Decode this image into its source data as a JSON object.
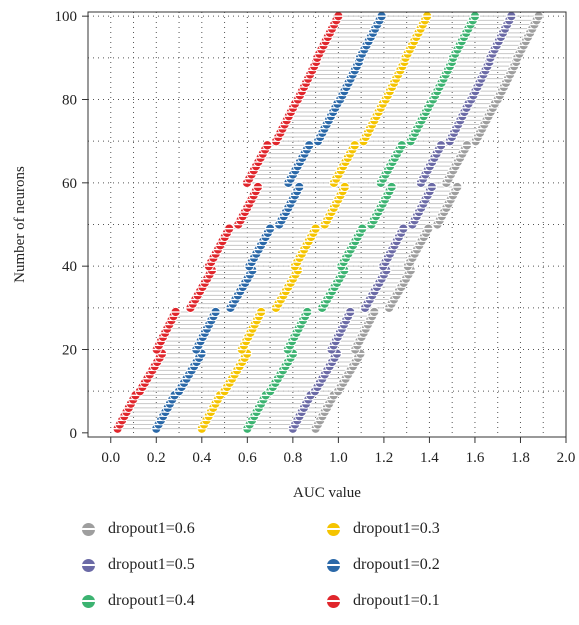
{
  "chart_data": {
    "type": "scatter",
    "title": "",
    "xlabel": "AUC value",
    "ylabel": "Number of neurons",
    "xlim": [
      -0.1,
      2.0
    ],
    "ylim": [
      -1,
      101
    ],
    "xticks": [
      "0.0",
      "0.2",
      "0.4",
      "0.6",
      "0.8",
      "1.0",
      "1.2",
      "1.4",
      "1.6",
      "1.8",
      "2.0"
    ],
    "yticks": [
      "0",
      "20",
      "40",
      "60",
      "80",
      "100"
    ],
    "grid": "dotted",
    "legend_position": "bottom",
    "series": [
      {
        "name": "dropout1=0.6",
        "color": "#9e9e9e",
        "start": 0.9,
        "end": 1.88
      },
      {
        "name": "dropout1=0.5",
        "color": "#6b6aa6",
        "start": 0.8,
        "end": 1.76
      },
      {
        "name": "dropout1=0.4",
        "color": "#3cb371",
        "start": 0.6,
        "end": 1.6
      },
      {
        "name": "dropout1=0.3",
        "color": "#f5c400",
        "start": 0.4,
        "end": 1.39
      },
      {
        "name": "dropout1=0.2",
        "color": "#2a68a8",
        "start": 0.2,
        "end": 1.19
      },
      {
        "name": "dropout1=0.1",
        "color": "#e0262c",
        "start": 0.03,
        "end": 1.0
      }
    ],
    "neuron_range": [
      1,
      100
    ]
  }
}
